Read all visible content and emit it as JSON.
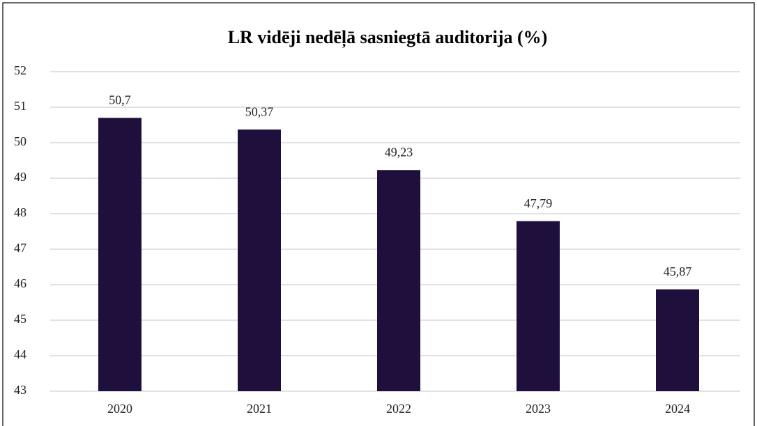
{
  "chart_data": {
    "type": "bar",
    "title": "LR vidēji nedēļā sasniegtā auditorija (%)",
    "categories": [
      "2020",
      "2021",
      "2022",
      "2023",
      "2024"
    ],
    "values": [
      50.7,
      50.37,
      49.23,
      47.79,
      45.87
    ],
    "value_labels": [
      "50,7",
      "50,37",
      "49,23",
      "47,79",
      "45,87"
    ],
    "color": "#1f0f3d",
    "ylim": [
      43,
      52
    ],
    "yticks": [
      43,
      44,
      45,
      46,
      47,
      48,
      49,
      50,
      51,
      52
    ],
    "grid": true
  }
}
